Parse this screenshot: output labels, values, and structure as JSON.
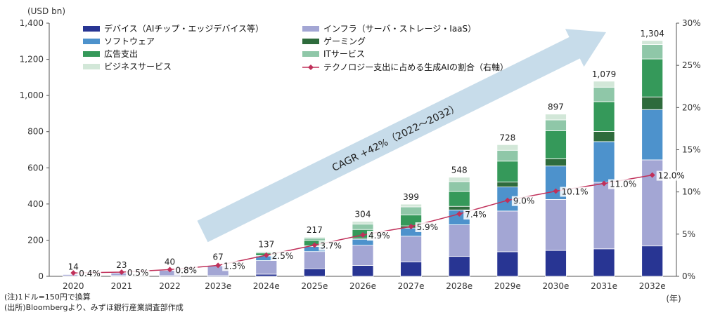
{
  "chart_data": {
    "type": "bar",
    "stacked": true,
    "title": "",
    "ylabel": "(USD bn)",
    "y2label": "",
    "xunit": "(年)",
    "ylim": [
      0,
      1400
    ],
    "yticks": [
      0,
      200,
      400,
      600,
      800,
      1000,
      1200,
      1400
    ],
    "yticklabels": [
      "0",
      "200",
      "400",
      "600",
      "800",
      "1,000",
      "1,200",
      "1,400"
    ],
    "y2lim": [
      0,
      30
    ],
    "y2ticks": [
      0,
      5,
      10,
      15,
      20,
      25,
      30
    ],
    "y2ticklabels": [
      "0%",
      "5%",
      "10%",
      "15%",
      "20%",
      "25%",
      "30%"
    ],
    "categories": [
      "2020",
      "2021",
      "2022",
      "2023e",
      "2024e",
      "2025e",
      "2026e",
      "2027e",
      "2028e",
      "2029e",
      "2030e",
      "2031e",
      "2032e"
    ],
    "series": [
      {
        "name": "デバイス（AIチップ・エッジデバイス等）",
        "color": "#283593",
        "values": [
          2,
          4,
          5,
          6,
          12,
          42,
          60,
          80,
          110,
          136,
          143,
          152,
          168
        ]
      },
      {
        "name": "インフラ（サーバ・ストレージ・IaaS）",
        "color": "#a3a6d4",
        "values": [
          9,
          15,
          28,
          52,
          75,
          95,
          112,
          142,
          175,
          225,
          282,
          368,
          476
        ]
      },
      {
        "name": "ソフトウェア",
        "color": "#4d92cc",
        "values": [
          1,
          1,
          2,
          3,
          25,
          28,
          33,
          45,
          82,
          133,
          185,
          225,
          278
        ]
      },
      {
        "name": "ゲーミング",
        "color": "#2e6b3c",
        "values": [
          0,
          0,
          1,
          1,
          3,
          4,
          6,
          12,
          20,
          28,
          40,
          56,
          70
        ]
      },
      {
        "name": "広告支出",
        "color": "#35995a",
        "values": [
          1,
          1,
          2,
          3,
          14,
          30,
          48,
          60,
          82,
          115,
          155,
          165,
          210
        ]
      },
      {
        "name": "ITサービス",
        "color": "#8fc7a8",
        "values": [
          1,
          2,
          2,
          2,
          6,
          12,
          30,
          45,
          55,
          60,
          60,
          80,
          80
        ]
      },
      {
        "name": "ビジネスサービス",
        "color": "#d2e7d8",
        "values": [
          0,
          0,
          0,
          0,
          2,
          6,
          15,
          15,
          24,
          31,
          32,
          33,
          22
        ]
      }
    ],
    "totals": [
      14,
      23,
      40,
      67,
      137,
      217,
      304,
      399,
      548,
      728,
      897,
      1079,
      1304
    ],
    "total_labels": [
      "14",
      "23",
      "40",
      "67",
      "137",
      "217",
      "304",
      "399",
      "548",
      "728",
      "897",
      "1,079",
      "1,304"
    ],
    "line": {
      "name": "テクノロジー支出に占める生成AIの割合（右軸）",
      "color": "#c0305a",
      "values": [
        0.4,
        0.5,
        0.8,
        1.3,
        2.5,
        3.7,
        4.9,
        5.9,
        7.4,
        9.0,
        10.1,
        11.0,
        12.0
      ],
      "labels": [
        "0.4%",
        "0.5%",
        "0.8%",
        "1.3%",
        "2.5%",
        "3.7%",
        "4.9%",
        "5.9%",
        "7.4%",
        "9.0%",
        "10.1%",
        "11.0%",
        "12.0%"
      ]
    },
    "annotation": "CAGR +42%（2022～2032）",
    "legend": "top"
  },
  "notes": [
    "(注)1ドル=150円で換算",
    "(出所)Bloombergより、みずほ銀行産業調査部作成"
  ]
}
